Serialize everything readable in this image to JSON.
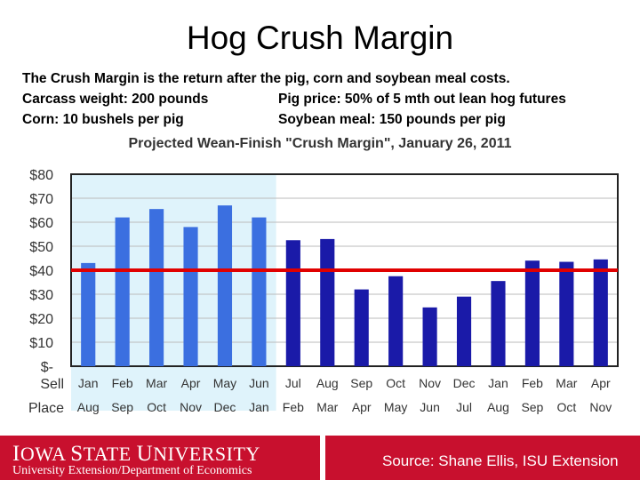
{
  "slide": {
    "title": "Hog Crush Margin",
    "description": "The Crush Margin is the return after the pig, corn and soybean meal costs.",
    "carcass": "Carcass weight:  200 pounds",
    "pig_price": "Pig price:  50% of 5 mth out lean hog futures",
    "corn": "Corn:  10 bushels per pig",
    "soy": "Soybean meal:  150 pounds per pig"
  },
  "footer": {
    "university_prefix_1": "I",
    "university_rest_1": "OWA ",
    "university_prefix_2": "S",
    "university_rest_2": "TATE ",
    "university_prefix_3": "U",
    "university_rest_3": "NIVERSITY",
    "department": "University Extension/Department of Economics",
    "source": "Source: Shane Ellis, ISU Extension"
  },
  "chart_data": {
    "type": "bar",
    "title": "Projected Wean-Finish \"Crush Margin\", January 26, 2011",
    "categories": [
      "Jan",
      "Feb",
      "Mar",
      "Apr",
      "May",
      "Jun",
      "Jul",
      "Aug",
      "Sep",
      "Oct",
      "Nov",
      "Dec",
      "Jan",
      "Feb",
      "Mar",
      "Apr"
    ],
    "place_labels": [
      "Aug",
      "Sep",
      "Oct",
      "Nov",
      "Dec",
      "Jan",
      "Feb",
      "Mar",
      "Apr",
      "May",
      "Jun",
      "Jul",
      "Aug",
      "Sep",
      "Oct",
      "Nov"
    ],
    "row_labels": {
      "sell": "Sell",
      "place": "Place"
    },
    "values": [
      43,
      62,
      65.5,
      58,
      67,
      62,
      52.5,
      53,
      32,
      37.5,
      24.5,
      29,
      35.5,
      44,
      43.5,
      44.5
    ],
    "ylim": [
      0,
      80
    ],
    "yticks": [
      0,
      10,
      20,
      30,
      40,
      50,
      60,
      70,
      80
    ],
    "ytick_labels": [
      "$-",
      "$10",
      "$20",
      "$30",
      "$40",
      "$50",
      "$60",
      "$70",
      "$80"
    ],
    "reference_line": 40,
    "historical_count": 6,
    "colors": {
      "historical_bar": "#3b6fe0",
      "projected_bar": "#1a1aa8",
      "historical_bg": "#dff3fb",
      "reference": "#e00000",
      "grid": "#bbbbbb"
    },
    "grid": true
  }
}
